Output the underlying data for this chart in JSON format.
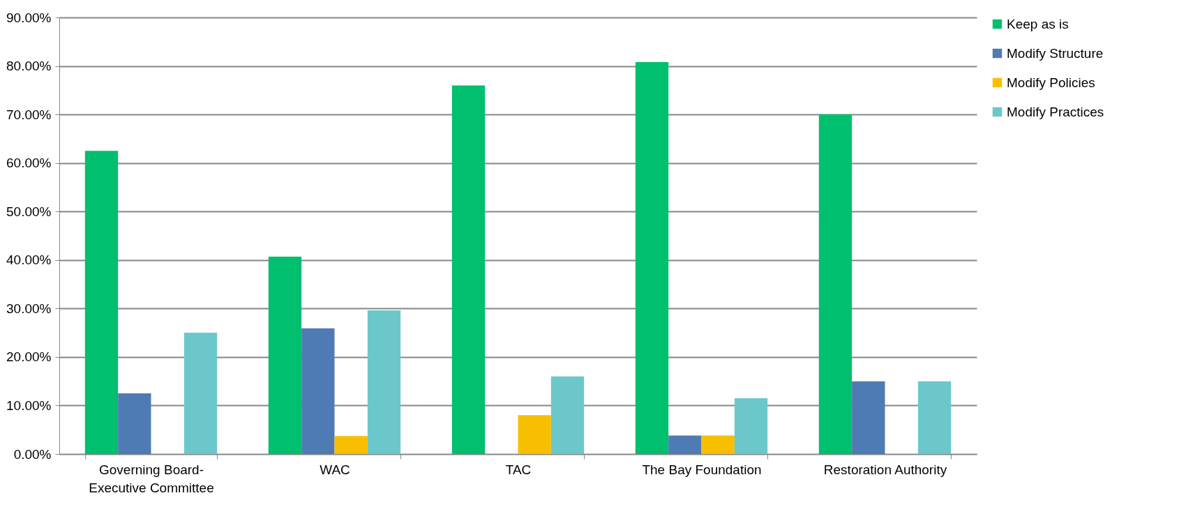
{
  "chart_data": {
    "type": "bar",
    "categories": [
      "Governing Board-Executive Committee",
      "WAC",
      "TAC",
      "The Bay Foundation",
      "Restoration Authority"
    ],
    "series": [
      {
        "name": "Keep as is",
        "color": "#00bf6f",
        "values": [
          62.5,
          40.7,
          76,
          80.8,
          70
        ]
      },
      {
        "name": "Modify Structure",
        "color": "#4f7bb4",
        "values": [
          12.5,
          25.9,
          null,
          3.8,
          15
        ]
      },
      {
        "name": "Modify Policies",
        "color": "#f8bf00",
        "values": [
          null,
          3.7,
          8,
          3.8,
          null
        ]
      },
      {
        "name": "Modify Practices",
        "color": "#6cc7cb",
        "values": [
          25,
          29.6,
          16,
          11.5,
          15
        ]
      }
    ],
    "ylim": [
      0,
      90
    ],
    "yticks": [
      {
        "value": 0,
        "label": "0.00%"
      },
      {
        "value": 10,
        "label": "10.00%"
      },
      {
        "value": 20,
        "label": "20.00%"
      },
      {
        "value": 30,
        "label": "30.00%"
      },
      {
        "value": 40,
        "label": "40.00%"
      },
      {
        "value": 50,
        "label": "50.00%"
      },
      {
        "value": 60,
        "label": "60.00%"
      },
      {
        "value": 70,
        "label": "70.00%"
      },
      {
        "value": 80,
        "label": "80.00%"
      },
      {
        "value": 90,
        "label": "90.00%"
      }
    ],
    "grid": "y",
    "legend": "right"
  }
}
